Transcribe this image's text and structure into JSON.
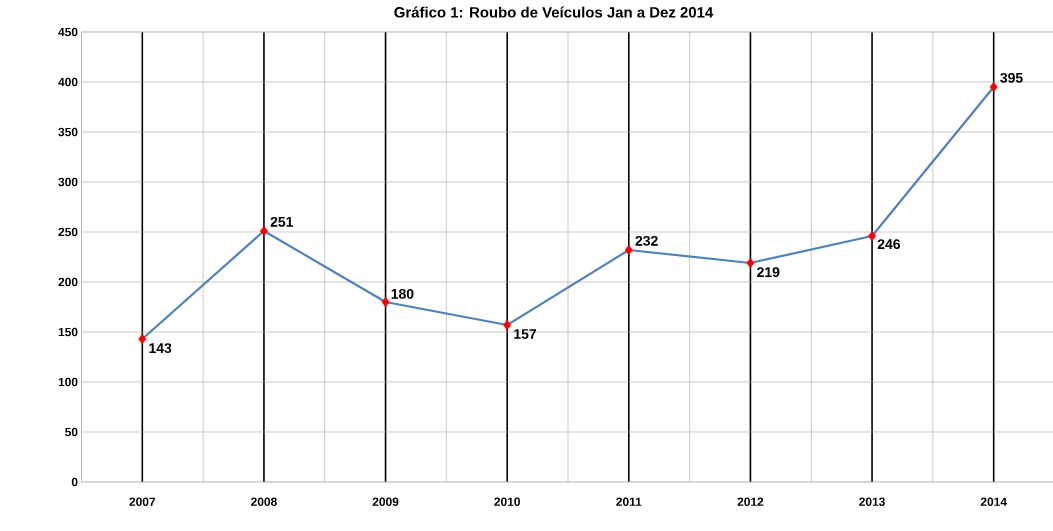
{
  "chart_data": {
    "type": "line",
    "title": "Gráfico 1: Roubo de Veículos Jan a Dez 2014",
    "categories": [
      "2007",
      "2008",
      "2009",
      "2010",
      "2011",
      "2012",
      "2013",
      "2014"
    ],
    "series": [
      {
        "color": "#4f81bd",
        "colors": [
          "#ff0000",
          "#ff0000",
          "#ff0000",
          "#ff0000",
          "#ff0000",
          "#ff0000",
          "#ff0000",
          "#ff0000"
        ],
        "values": [
          143,
          251,
          180,
          157,
          232,
          219,
          246,
          395
        ]
      }
    ],
    "marker": "diamond",
    "data_labels": true,
    "grid": true,
    "ylim": [
      0,
      450
    ],
    "yticks": [
      0,
      50,
      100,
      150,
      200,
      250,
      300,
      350,
      400,
      450
    ]
  }
}
